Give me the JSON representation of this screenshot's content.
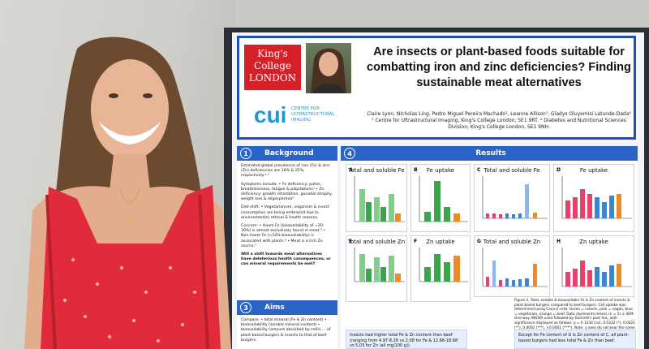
{
  "poster": {
    "title": "Are insects or plant-based foods suitable for combatting iron and zinc deficiencies? Finding sustainable meat alternatives",
    "logo_text": [
      "King's",
      "College",
      "LONDON"
    ],
    "cui_letters": "cui",
    "cui_subtitle": "CENTRE FOR ULTRASTRUCTURAL IMAGING",
    "authors": "Claire Lyon, Nicholas Ling, Pedro Miguel Pereira Machado¹, Leanne Allison¹, Gladys Oluyemisi Latunde-Dada²",
    "affiliations": "¹ Centre for Ultrastructural Imaging, King's College London, SE1 9RT. ² Diabetes and Nutritional Sciences Division, King's College London, SE1 9NH."
  },
  "background": {
    "num": "1",
    "heading": "Background",
    "p1": "Estimated global prevalence of iron (Fe) & zinc (Zn) deficiencies are 16% & 25%, respectively.¹·²",
    "p2": "Symptoms include: • Fe deficiency: pallor, breathlessness, fatigue & palpitations³ • Zn deficiency: growth retardation, gonadal atrophy, weight loss & oligospermia⁴",
    "p3": "Diet-shift: • Vegetarianism, veganism & insect consumption are being embraced due to environmental, ethical & health reasons.",
    "p4": "Concern: • Haem Fe (bioavailability of ~20-30%) is almost exclusively found in meat.⁵ • Non-haem Fe (<10% bioavailability) is associated with plants.⁶ • Meat is a rich Zn source.⁷",
    "p5": "Will a shift towards meat alternatives have deleterious health consequences, or can mineral requirements be met?"
  },
  "aims": {
    "num": "3",
    "heading": "Aims",
    "text": "Compare: • total mineral (Fe & Zn content) • bioavailability (soluble mineral content) • bioavailability (amount absorbed by cells) ... of plant-based burgers & insects to that of beef burgers."
  },
  "results": {
    "num": "4",
    "heading": "Results",
    "panels": [
      {
        "letter": "A",
        "title": "Total and soluble Fe"
      },
      {
        "letter": "B",
        "title": "Fe uptake"
      },
      {
        "letter": "C",
        "title": "Total and soluble Fe"
      },
      {
        "letter": "D",
        "title": "Fe uptake"
      },
      {
        "letter": "E",
        "title": "Total and soluble Zn"
      },
      {
        "letter": "F",
        "title": "Zn uptake"
      },
      {
        "letter": "G",
        "title": "Total and soluble Zn"
      },
      {
        "letter": "H",
        "title": "Zn uptake"
      }
    ],
    "caption": "Figure 2. Total, soluble & bioavailable Fe & Zn content of insects & plant-based burgers compared to beef burgers. Cell uptake was determined using Caco-2 cells. Green = insects, pink = vegan, blue = vegetarian, orange = beef. Data represents means (n = 5) ± SEM. One-way ANOVA used followed by Dunnett's post hoc, with significance displayed as follows: p = 0.1234 (ns), 0.0332 (*), 0.0021 (**), 0.0002 (***), <0.0001 (****). Note: y-axes do not bear the same scales.",
    "callout_left": "Insects had higher total Fe & Zn content than beef (ranging from 4.97-8.26 vs 2.08 for Fe & 12.86-18.68 vs 5.03 for Zn (all mg/100 g)).",
    "callout_right": "Except for Fe content of G & Zn content of C, all plant-based burgers had less total Fe & Zn than beef."
  },
  "colors": {
    "insect": "#3aa64a",
    "vegan": "#e8406a",
    "vegetarian": "#3a86d6",
    "beef": "#f08a24",
    "header_border": "#1f4fb6"
  }
}
